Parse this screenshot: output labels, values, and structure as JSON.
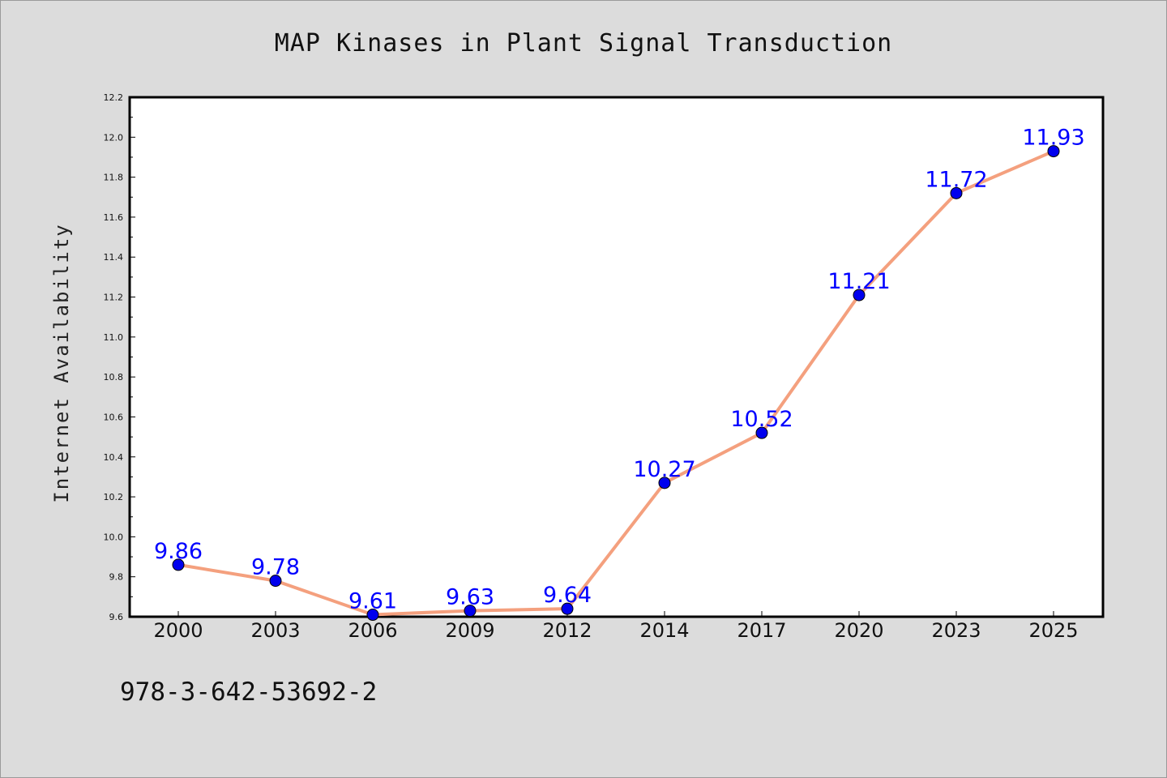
{
  "chart_data": {
    "type": "line",
    "title": "MAP Kinases in Plant Signal Transduction",
    "xlabel": "",
    "ylabel": "Internet Availability",
    "categories": [
      "2000",
      "2003",
      "2006",
      "2009",
      "2012",
      "2014",
      "2017",
      "2020",
      "2023",
      "2025"
    ],
    "series": [
      {
        "values": [
          9.86,
          9.78,
          9.61,
          9.63,
          9.64,
          10.27,
          10.52,
          11.21,
          11.72,
          11.93
        ],
        "labels": [
          "9.86",
          "9.78",
          "9.61",
          "9.63",
          "9.64",
          "10.27",
          "10.52",
          "11.21",
          "11.72",
          "11.93"
        ],
        "line_color": "#f4a07e",
        "marker_color": "#0000ee",
        "label_color": "#0000ff"
      }
    ],
    "ylim": [
      9.6,
      12.2
    ],
    "yticks": [
      "9.6",
      "9.8",
      "10.0",
      "10.2",
      "10.4",
      "10.6",
      "10.8",
      "11.0",
      "11.2",
      "11.4",
      "11.6",
      "11.8",
      "12.0",
      "12.2"
    ],
    "grid": false,
    "legend": "none",
    "background": "#dcdcdc",
    "plot_background": "#ffffff"
  },
  "footer_text": "978-3-642-53692-2"
}
